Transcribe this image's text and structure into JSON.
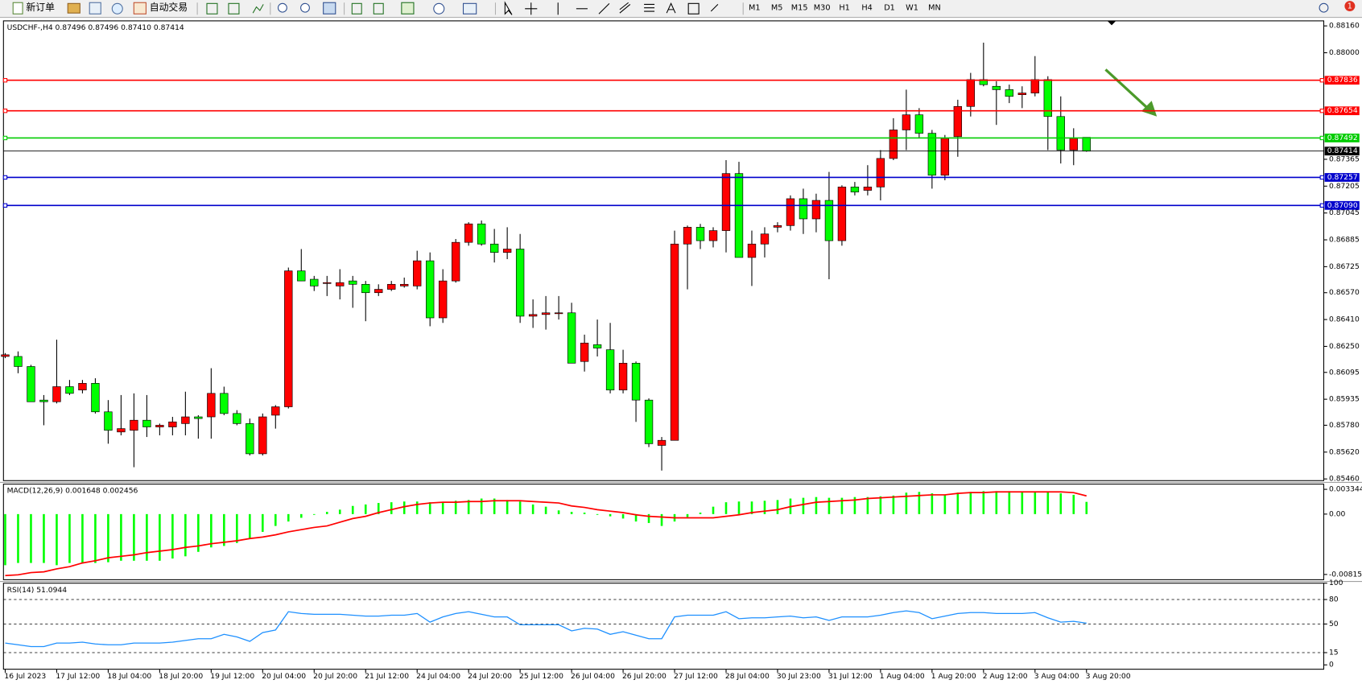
{
  "toolbar": {
    "new_order": "新订单",
    "auto_trading": "自动交易",
    "timeframes": [
      "M1",
      "M5",
      "M15",
      "M30",
      "H1",
      "H4",
      "D1",
      "W1",
      "MN"
    ],
    "notification": "1"
  },
  "chart_data": [
    {
      "type": "candlestick",
      "title": "USDCHF-,H4  0.87496 0.87496 0.87410 0.87414",
      "categories": [
        "16 Jul 2023",
        null,
        null,
        null,
        "17 Jul 12:00",
        null,
        null,
        null,
        "18 Jul 04:00",
        null,
        null,
        null,
        "18 Jul 20:00",
        null,
        null,
        null,
        "19 Jul 12:00",
        null,
        null,
        null,
        "20 Jul 04:00",
        null,
        null,
        null,
        "20 Jul 20:00",
        null,
        null,
        null,
        "21 Jul 12:00",
        null,
        null,
        null,
        "24 Jul 04:00",
        null,
        null,
        null,
        "24 Jul 20:00",
        null,
        null,
        null,
        "25 Jul 12:00",
        null,
        null,
        null,
        "26 Jul 04:00",
        null,
        null,
        null,
        "26 Jul 20:00",
        null,
        null,
        null,
        "27 Jul 12:00",
        null,
        null,
        null,
        "28 Jul 04:00",
        null,
        null,
        null,
        "30 Jul 23:00",
        null,
        null,
        null,
        "31 Jul 12:00",
        null,
        null,
        null,
        "1 Aug 04:00",
        null,
        null,
        null,
        "1 Aug 20:00",
        null,
        null,
        null,
        "2 Aug 12:00",
        null,
        null,
        null,
        "3 Aug 04:00",
        null,
        null,
        null,
        "3 Aug 20:00"
      ],
      "open": [
        0.8619,
        0.8619,
        0.8613,
        0.8593,
        0.8592,
        0.8601,
        0.8599,
        0.8603,
        0.8586,
        0.8574,
        0.8575,
        0.8581,
        0.8577,
        0.8577,
        0.8579,
        0.8583,
        0.8583,
        0.8597,
        0.8585,
        0.8579,
        0.8561,
        0.8584,
        0.8589,
        0.867,
        0.8665,
        0.8663,
        0.8661,
        0.8664,
        0.8662,
        0.8657,
        0.8659,
        0.8661,
        0.8661,
        0.8676,
        0.8642,
        0.8664,
        0.8687,
        0.8698,
        0.8686,
        0.8681,
        0.8683,
        0.8643,
        0.8644,
        0.8645,
        0.8645,
        0.8616,
        0.8626,
        0.8623,
        0.8599,
        0.8615,
        0.8593,
        0.8566,
        0.8569,
        0.8686,
        0.8696,
        0.8688,
        0.8694,
        0.8728,
        0.8678,
        0.8686,
        0.8696,
        0.8697,
        0.8713,
        0.8701,
        0.8712,
        0.8688,
        0.872,
        0.8718,
        0.872,
        0.8737,
        0.8754,
        0.8763,
        0.8752,
        0.8727,
        0.875,
        0.8768,
        0.8784,
        0.878,
        0.8778,
        0.8775,
        0.8776,
        0.8784,
        0.8762,
        0.8742,
        0.87496
      ],
      "high": [
        0.8621,
        0.8622,
        0.8614,
        0.8596,
        0.8629,
        0.8605,
        0.8605,
        0.8606,
        0.8593,
        0.8596,
        0.8597,
        0.8596,
        0.8579,
        0.8583,
        0.8598,
        0.8584,
        0.8612,
        0.8601,
        0.8587,
        0.8582,
        0.8585,
        0.859,
        0.8672,
        0.8683,
        0.8667,
        0.8667,
        0.8671,
        0.8667,
        0.8664,
        0.8662,
        0.8664,
        0.8666,
        0.8682,
        0.8681,
        0.8671,
        0.8689,
        0.8699,
        0.87,
        0.8695,
        0.8696,
        0.8692,
        0.8653,
        0.8655,
        0.8655,
        0.8651,
        0.8632,
        0.8641,
        0.8639,
        0.8623,
        0.8616,
        0.8594,
        0.8571,
        0.8694,
        0.8697,
        0.8698,
        0.8696,
        0.8736,
        0.8735,
        0.8694,
        0.8696,
        0.8699,
        0.8715,
        0.8719,
        0.8716,
        0.8729,
        0.8721,
        0.8723,
        0.8733,
        0.8742,
        0.8761,
        0.8778,
        0.8767,
        0.8754,
        0.8751,
        0.8772,
        0.8788,
        0.8806,
        0.8783,
        0.8781,
        0.878,
        0.8798,
        0.8786,
        0.8774,
        0.8755,
        0.87496
      ],
      "low": [
        0.8618,
        0.8609,
        0.8592,
        0.8578,
        0.8591,
        0.8596,
        0.8597,
        0.8585,
        0.8567,
        0.8572,
        0.8553,
        0.8571,
        0.8572,
        0.8572,
        0.8572,
        0.857,
        0.857,
        0.8584,
        0.8578,
        0.856,
        0.856,
        0.8576,
        0.8588,
        0.8664,
        0.8658,
        0.8655,
        0.8653,
        0.8648,
        0.864,
        0.8655,
        0.8658,
        0.866,
        0.8659,
        0.8637,
        0.8639,
        0.8663,
        0.8685,
        0.8685,
        0.8675,
        0.8677,
        0.8639,
        0.8636,
        0.8635,
        0.8641,
        0.8615,
        0.861,
        0.8619,
        0.8597,
        0.8597,
        0.858,
        0.8565,
        0.8551,
        0.8569,
        0.8659,
        0.8683,
        0.8684,
        0.8681,
        0.8678,
        0.8661,
        0.8678,
        0.8693,
        0.8694,
        0.8692,
        0.8693,
        0.8665,
        0.8685,
        0.8715,
        0.8715,
        0.8712,
        0.8736,
        0.8742,
        0.8749,
        0.8719,
        0.8724,
        0.8738,
        0.8762,
        0.878,
        0.8757,
        0.877,
        0.8767,
        0.8774,
        0.8742,
        0.8734,
        0.8733,
        0.8741
      ],
      "close": [
        0.862,
        0.8613,
        0.8592,
        0.8592,
        0.8601,
        0.8597,
        0.8603,
        0.8586,
        0.8575,
        0.8576,
        0.8581,
        0.8577,
        0.8578,
        0.858,
        0.8583,
        0.8582,
        0.8597,
        0.8585,
        0.8579,
        0.8561,
        0.8583,
        0.8589,
        0.867,
        0.8664,
        0.8661,
        0.8663,
        0.8663,
        0.8662,
        0.8657,
        0.8659,
        0.8662,
        0.8662,
        0.8676,
        0.8642,
        0.8664,
        0.8687,
        0.8698,
        0.8686,
        0.8681,
        0.8683,
        0.8643,
        0.8644,
        0.8645,
        0.8645,
        0.8615,
        0.8627,
        0.8624,
        0.8599,
        0.8615,
        0.8593,
        0.8567,
        0.8569,
        0.8686,
        0.8696,
        0.8688,
        0.8694,
        0.8728,
        0.8678,
        0.8686,
        0.8692,
        0.8697,
        0.8713,
        0.8701,
        0.8712,
        0.8688,
        0.872,
        0.8717,
        0.872,
        0.8737,
        0.8754,
        0.8763,
        0.8752,
        0.8727,
        0.8749,
        0.8768,
        0.8784,
        0.8781,
        0.8778,
        0.8774,
        0.8776,
        0.8784,
        0.8762,
        0.8742,
        0.8749,
        0.87414
      ],
      "up_color": "#ff0000",
      "down_color": "#00ff00",
      "wick_color": "#000000",
      "ylim": [
        0.8545,
        0.8819
      ],
      "yticks": [
        {
          "value": 0.8816,
          "label": "0.88160"
        },
        {
          "value": 0.88,
          "label": "0.88000"
        },
        0.87365,
        0.87205,
        0.87045,
        0.86885,
        0.86725,
        {
          "value": 0.8657,
          "label": "0.86570"
        },
        {
          "value": 0.8641,
          "label": "0.86410"
        },
        {
          "value": 0.8625,
          "label": "0.86250"
        },
        0.86095,
        0.85935,
        {
          "value": 0.8578,
          "label": "0.85780"
        },
        {
          "value": 0.8562,
          "label": "0.85620"
        },
        {
          "value": 0.8546,
          "label": "0.85460"
        }
      ],
      "grid": false,
      "levels": [
        {
          "value": 0.87836,
          "color": "#ff0000"
        },
        {
          "value": 0.87654,
          "color": "#ff0000"
        },
        {
          "value": 0.87492,
          "color": "#00cc00"
        },
        {
          "value": 0.87257,
          "color": "#0000cc"
        },
        {
          "value": 0.8709,
          "label": "0.87090",
          "color": "#0000cc"
        }
      ],
      "current_price": 0.87414
    },
    {
      "type": "macd",
      "title": "MACD(12,26,9) 0.001648 0.002456",
      "series": [
        {
          "color": "#00ff00",
          "values": [
            -0.0069,
            -0.0066,
            -0.0066,
            -0.0066,
            -0.0069,
            -0.0066,
            -0.0066,
            -0.0066,
            -0.0065,
            -0.0063,
            -0.0063,
            -0.0063,
            -0.0063,
            -0.006,
            -0.0057,
            -0.0051,
            -0.0045,
            -0.0043,
            -0.0039,
            -0.0033,
            -0.0024,
            -0.0016,
            -0.001,
            -0.0005,
            -0.0001,
            0.0003,
            0.0006,
            0.0011,
            0.0013,
            0.0015,
            0.0016,
            0.0017,
            0.0017,
            0.0016,
            0.0016,
            0.0018,
            0.0019,
            0.0021,
            0.0021,
            0.0019,
            0.0017,
            0.0013,
            0.001,
            0.0005,
            0.0003,
            0.0002,
            -0.0001,
            -0.0003,
            -0.0006,
            -0.001,
            -0.0012,
            -0.0016,
            -0.001,
            -0.0004,
            0.0002,
            0.001,
            0.0016,
            0.0017,
            0.0017,
            0.0018,
            0.0019,
            0.0021,
            0.0022,
            0.0023,
            0.0022,
            0.0022,
            0.0023,
            0.0023,
            0.0024,
            0.0025,
            0.0029,
            0.003,
            0.0028,
            0.0026,
            0.0029,
            0.003,
            0.0031,
            0.0031,
            0.0031,
            0.003,
            0.003,
            0.003,
            0.0028,
            0.0026,
            0.001648
          ]
        },
        {
          "color": "#ff0000",
          "values": [
            -0.0083,
            -0.0082,
            -0.0079,
            -0.0078,
            -0.0074,
            -0.0071,
            -0.0066,
            -0.0063,
            -0.0059,
            -0.0057,
            -0.0055,
            -0.0052,
            -0.005,
            -0.0048,
            -0.0045,
            -0.0043,
            -0.004,
            -0.0038,
            -0.0036,
            -0.0033,
            -0.0031,
            -0.0028,
            -0.0024,
            -0.0021,
            -0.0018,
            -0.0016,
            -0.0011,
            -0.0006,
            -0.0003,
            0.0002,
            0.0006,
            0.001,
            0.0013,
            0.0015,
            0.0016,
            0.0016,
            0.0017,
            0.0017,
            0.0018,
            0.0018,
            0.0018,
            0.0017,
            0.0016,
            0.0015,
            0.0011,
            0.0009,
            0.0006,
            0.0004,
            0.0002,
            -0.0001,
            -0.0003,
            -0.0004,
            -0.0005,
            -0.0005,
            -0.0005,
            -0.0005,
            -0.0003,
            -0.0001,
            0.0002,
            0.0004,
            0.0006,
            0.001,
            0.0013,
            0.0016,
            0.0017,
            0.0018,
            0.0019,
            0.0021,
            0.0022,
            0.0023,
            0.0024,
            0.0025,
            0.0026,
            0.0026,
            0.0028,
            0.0029,
            0.0029,
            0.003,
            0.003,
            0.003,
            0.003,
            0.003,
            0.003,
            0.0029,
            0.002456
          ]
        }
      ],
      "ylim": [
        -0.00886,
        0.00405
      ],
      "yticks": [
        0.003344,
        {
          "value": 0,
          "label": "0.00"
        },
        -0.008152
      ]
    },
    {
      "type": "line",
      "title": "RSI(14) 51.0944",
      "color": "#1e90ff",
      "values": [
        26.7,
        24.6,
        22.4,
        22.4,
        26.7,
        26.7,
        27.8,
        25.6,
        24.6,
        24.6,
        26.7,
        26.7,
        26.7,
        27.8,
        29.9,
        32,
        32,
        37.4,
        34.2,
        28.8,
        39.5,
        42.7,
        65.1,
        62.9,
        61.9,
        61.9,
        61.9,
        60.8,
        59.7,
        59.7,
        60.8,
        60.8,
        62.9,
        52.3,
        58.7,
        62.9,
        65.1,
        61.9,
        58.7,
        58.7,
        49.1,
        49.1,
        49.1,
        49.1,
        41.6,
        44.8,
        43.8,
        37.4,
        40.6,
        36.3,
        32,
        32,
        58.7,
        60.8,
        60.8,
        60.8,
        65.1,
        56.5,
        57.6,
        57.6,
        58.7,
        59.7,
        57.6,
        58.7,
        54.4,
        58.7,
        58.7,
        58.7,
        60.8,
        64,
        66.1,
        64,
        56.5,
        59.7,
        62.9,
        64,
        64,
        62.9,
        62.9,
        62.9,
        64,
        57.6,
        52.3,
        53.3,
        51.0944
      ],
      "ylim": [
        0,
        100
      ],
      "yticks": [
        100,
        80,
        50,
        15,
        0
      ],
      "levels": [
        80,
        50,
        15
      ]
    }
  ]
}
